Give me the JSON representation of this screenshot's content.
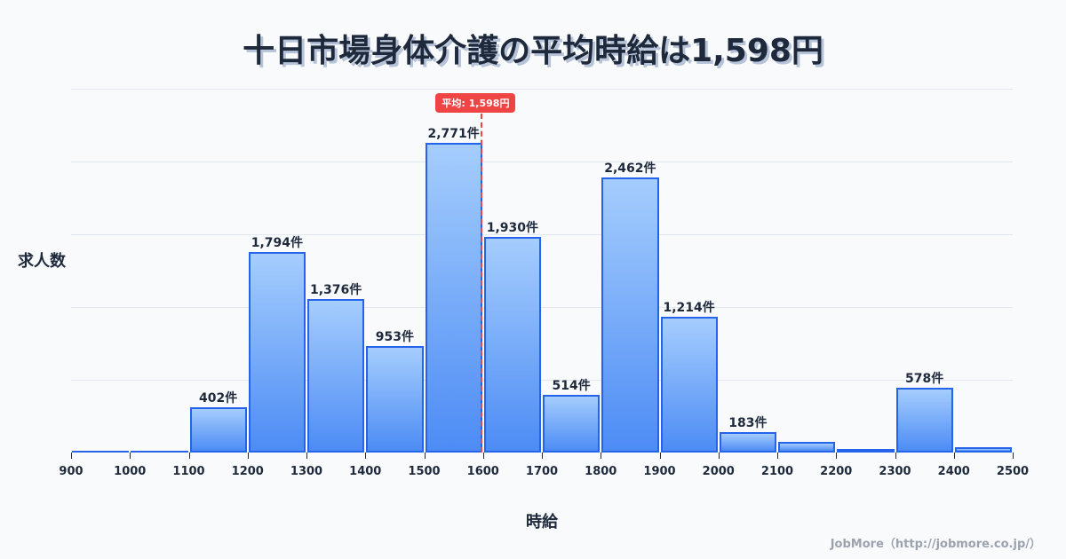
{
  "title": "十日市場身体介護の平均時給は1,598円",
  "y_axis_label": "求人数",
  "x_axis_label": "時給",
  "credit": "JobMore（http://jobmore.co.jp/）",
  "average_badge": "平均: 1,598円",
  "colors": {
    "bar_border": "#2563eb",
    "bar_top": "#a5cdfd",
    "bar_bottom": "#4d8cf5",
    "average_line": "#ef4444",
    "background": "#f8fafc",
    "text": "#1e293b"
  },
  "chart_data": {
    "type": "bar",
    "title": "十日市場身体介護の平均時給は1,598円",
    "xlabel": "時給",
    "ylabel": "求人数",
    "bin_edges": [
      900,
      1000,
      1100,
      1200,
      1300,
      1400,
      1500,
      1600,
      1700,
      1800,
      1900,
      2000,
      2100,
      2200,
      2300,
      2400,
      2500
    ],
    "categories": [
      "900-1000",
      "1000-1100",
      "1100-1200",
      "1200-1300",
      "1300-1400",
      "1400-1500",
      "1500-1600",
      "1600-1700",
      "1700-1800",
      "1800-1900",
      "1900-2000",
      "2000-2100",
      "2100-2200",
      "2200-2300",
      "2300-2400",
      "2400-2500"
    ],
    "values": [
      10,
      10,
      402,
      1794,
      1376,
      953,
      2771,
      1930,
      514,
      2462,
      1214,
      183,
      95,
      30,
      578,
      45
    ],
    "labels": [
      "",
      "",
      "402件",
      "1,794件",
      "1,376件",
      "953件",
      "2,771件",
      "1,930件",
      "514件",
      "2,462件",
      "1,214件",
      "183件",
      "",
      "",
      "578件",
      ""
    ],
    "x_ticks": [
      "900",
      "1000",
      "1100",
      "1200",
      "1300",
      "1400",
      "1500",
      "1600",
      "1700",
      "1800",
      "1900",
      "2000",
      "2100",
      "2200",
      "2300",
      "2400",
      "2500"
    ],
    "average": 1598,
    "average_label": "平均: 1,598円",
    "xlim": [
      900,
      2500
    ],
    "ylim": [
      0,
      3250
    ],
    "grid": true,
    "legend": null
  }
}
